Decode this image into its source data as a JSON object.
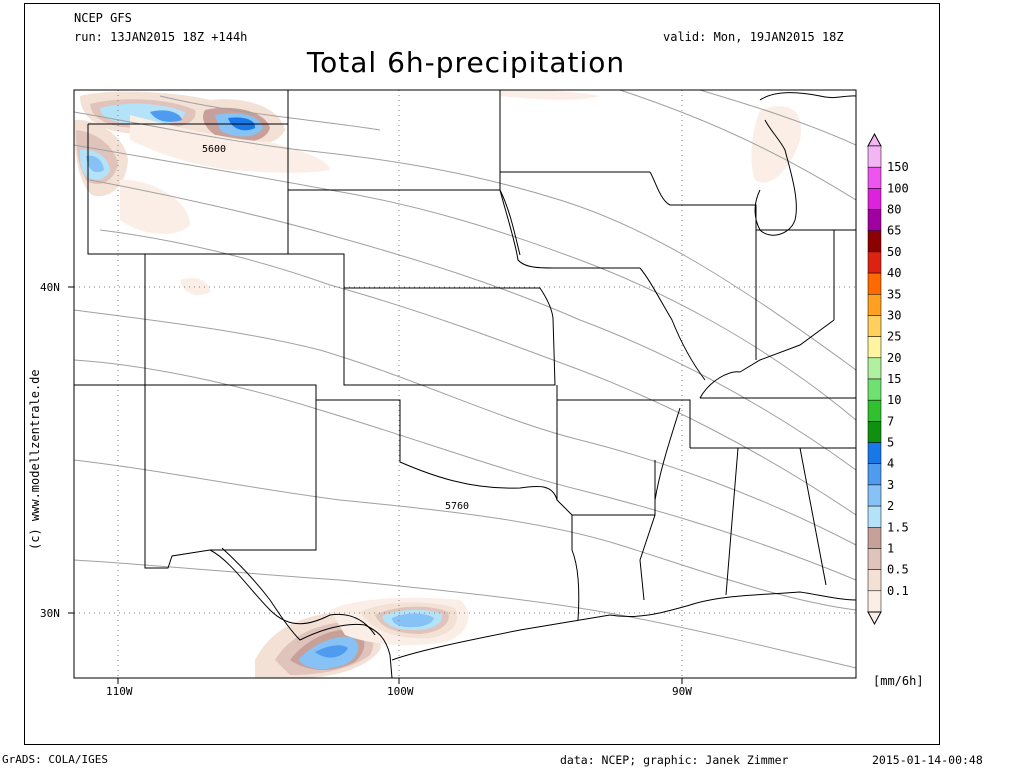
{
  "header": {
    "model": "NCEP GFS",
    "run": "run: 13JAN2015 18Z +144h",
    "valid": "valid: Mon, 19JAN2015 18Z",
    "title": "Total 6h-precipitation"
  },
  "side_credit": "(c) www.modellzentrale.de",
  "footer": {
    "left": "GrADS: COLA/IGES",
    "middle": "data: NCEP; graphic: Janek Zimmer",
    "right": "2015-01-14-00:48"
  },
  "map": {
    "lat_labels": [
      "40N",
      "30N"
    ],
    "lon_labels": [
      "110W",
      "100W",
      "90W"
    ],
    "contour_labels": [
      "5600",
      "5760"
    ]
  },
  "legend": {
    "unit": "[mm/6h]",
    "levels": [
      "150",
      "100",
      "80",
      "65",
      "50",
      "40",
      "35",
      "30",
      "25",
      "20",
      "15",
      "10",
      "7",
      "5",
      "4",
      "3",
      "2",
      "1.5",
      "1",
      "0.5",
      "0.1"
    ],
    "colors": [
      "#f3b5f3",
      "#ee55ee",
      "#dd22dd",
      "#a000a0",
      "#8b0000",
      "#dd2211",
      "#ff6a00",
      "#ffa020",
      "#ffd060",
      "#fff5a0",
      "#b0f0a0",
      "#70e070",
      "#30c030",
      "#109010",
      "#1878e8",
      "#4e9bf0",
      "#86c2f5",
      "#b4e2f8",
      "#c8a09a",
      "#e0c4bc",
      "#f3e1d6",
      "#faeee6"
    ]
  }
}
